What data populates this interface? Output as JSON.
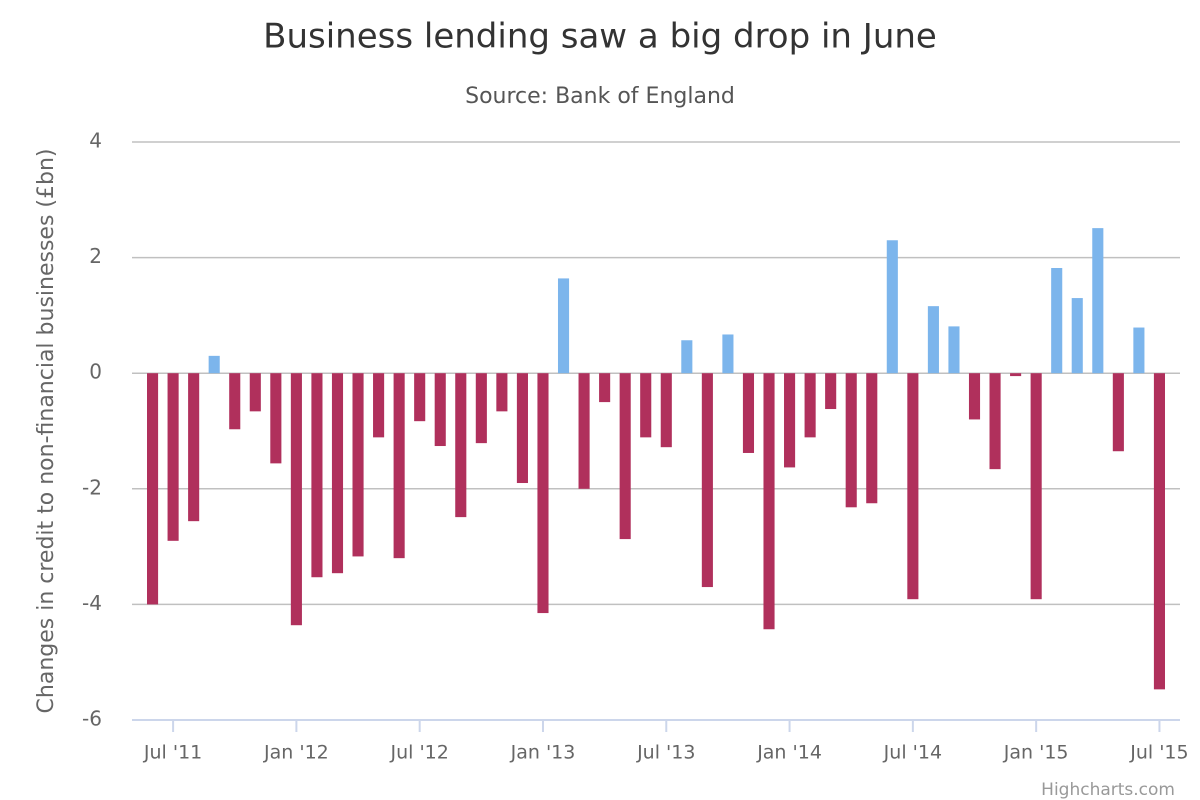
{
  "chart_data": {
    "type": "bar",
    "title": "Business lending saw a big drop in June",
    "subtitle": "Source: Bank of England",
    "y_axis_label": "Changes in credit to non-financial businesses (£bn)",
    "credits": "Highcharts.com",
    "color": "#7cb5ec",
    "negative_color": "#b0305c",
    "grid": true,
    "x": [
      "2011-06",
      "2011-07",
      "2011-08",
      "2011-09",
      "2011-10",
      "2011-11",
      "2011-12",
      "2012-01",
      "2012-02",
      "2012-03",
      "2012-04",
      "2012-05",
      "2012-06",
      "2012-07",
      "2012-08",
      "2012-09",
      "2012-10",
      "2012-11",
      "2012-12",
      "2013-01",
      "2013-02",
      "2013-03",
      "2013-04",
      "2013-05",
      "2013-06",
      "2013-07",
      "2013-08",
      "2013-09",
      "2013-10",
      "2013-11",
      "2013-12",
      "2014-01",
      "2014-02",
      "2014-03",
      "2014-04",
      "2014-05",
      "2014-06",
      "2014-07",
      "2014-08",
      "2014-09",
      "2014-10",
      "2014-11",
      "2014-12",
      "2015-01",
      "2015-02",
      "2015-03",
      "2015-04",
      "2015-05",
      "2015-06",
      "2015-07"
    ],
    "values": [
      -4.0,
      -2.9,
      -2.56,
      0.3,
      -0.97,
      -0.66,
      -1.56,
      -4.36,
      -3.53,
      -3.46,
      -3.17,
      -1.11,
      -3.2,
      -0.83,
      -1.26,
      -2.49,
      -1.21,
      -0.66,
      -1.9,
      -4.15,
      1.64,
      -2.0,
      -0.5,
      -2.87,
      -1.11,
      -1.28,
      0.57,
      -3.7,
      0.67,
      -1.38,
      -4.43,
      -1.63,
      -1.11,
      -0.62,
      -2.32,
      -2.25,
      2.3,
      -3.91,
      1.16,
      0.81,
      -0.8,
      -1.66,
      -0.05,
      -3.91,
      1.82,
      1.3,
      2.51,
      -1.35,
      0.79,
      -5.47
    ],
    "xlim": [
      "2011-05",
      "2015-08"
    ],
    "xticks": [
      {
        "value": "2011-07",
        "label": "Jul '11"
      },
      {
        "value": "2012-01",
        "label": "Jan '12"
      },
      {
        "value": "2012-07",
        "label": "Jul '12"
      },
      {
        "value": "2013-01",
        "label": "Jan '13"
      },
      {
        "value": "2013-07",
        "label": "Jul '13"
      },
      {
        "value": "2014-01",
        "label": "Jan '14"
      },
      {
        "value": "2014-07",
        "label": "Jul '14"
      },
      {
        "value": "2015-01",
        "label": "Jan '15"
      },
      {
        "value": "2015-07",
        "label": "Jul '15"
      }
    ],
    "ylim": [
      -6,
      4
    ],
    "yticks": [
      -6,
      -4,
      -2,
      0,
      2,
      4
    ]
  }
}
